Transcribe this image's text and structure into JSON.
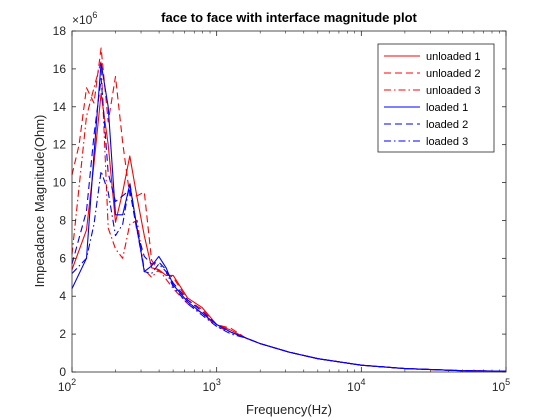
{
  "chart_data": {
    "type": "line",
    "title": "face to face with interface magnitude plot",
    "xlabel": "Frequency(Hz)",
    "ylabel": "Impeadance Magnitude(Ohm)",
    "x_scale": "log",
    "xlim": [
      100,
      100000
    ],
    "ylim": [
      0,
      18000000
    ],
    "y_exponent_label": "×10",
    "y_exponent": "6",
    "x_tick_base": "10",
    "x_ticks": [
      {
        "value": 100,
        "exp": "2"
      },
      {
        "value": 1000,
        "exp": "3"
      },
      {
        "value": 10000,
        "exp": "4"
      },
      {
        "value": 100000,
        "exp": "5"
      }
    ],
    "y_ticks": [
      {
        "value": 0,
        "label": "0"
      },
      {
        "value": 2000000,
        "label": "2"
      },
      {
        "value": 4000000,
        "label": "4"
      },
      {
        "value": 6000000,
        "label": "6"
      },
      {
        "value": 8000000,
        "label": "8"
      },
      {
        "value": 10000000,
        "label": "10"
      },
      {
        "value": 12000000,
        "label": "12"
      },
      {
        "value": 14000000,
        "label": "14"
      },
      {
        "value": 16000000,
        "label": "16"
      },
      {
        "value": 18000000,
        "label": "18"
      }
    ],
    "grid": false,
    "legend_position": "top-right",
    "series": [
      {
        "name": "unloaded 1",
        "color": "#ff0000",
        "dash": "solid",
        "points": [
          [
            100,
            5400000
          ],
          [
            126,
            7500000
          ],
          [
            142,
            11000000
          ],
          [
            159,
            14700000
          ],
          [
            178,
            12000000
          ],
          [
            200,
            7900000
          ],
          [
            224,
            9500000
          ],
          [
            251,
            11400000
          ],
          [
            282,
            9200000
          ],
          [
            316,
            7200000
          ],
          [
            355,
            5500000
          ],
          [
            398,
            5400000
          ],
          [
            447,
            5100000
          ],
          [
            501,
            5100000
          ],
          [
            631,
            3900000
          ],
          [
            794,
            3400000
          ],
          [
            1000,
            2500000
          ],
          [
            1259,
            2200000
          ],
          [
            1585,
            1800000
          ],
          [
            2000,
            1500000
          ],
          [
            3162,
            1050000
          ],
          [
            5012,
            700000
          ],
          [
            10000,
            360000
          ],
          [
            20000,
            180000
          ],
          [
            50000,
            70000
          ],
          [
            100000,
            40000
          ]
        ]
      },
      {
        "name": "unloaded 2",
        "color": "#ff0000",
        "dash": "dashed",
        "points": [
          [
            100,
            10400000
          ],
          [
            112,
            12000000
          ],
          [
            126,
            15000000
          ],
          [
            142,
            14200000
          ],
          [
            159,
            17100000
          ],
          [
            178,
            13200000
          ],
          [
            200,
            15600000
          ],
          [
            224,
            12100000
          ],
          [
            251,
            9300000
          ],
          [
            282,
            9300000
          ],
          [
            316,
            9500000
          ],
          [
            355,
            5900000
          ],
          [
            398,
            5300000
          ],
          [
            447,
            5200000
          ],
          [
            501,
            5000000
          ],
          [
            631,
            3800000
          ],
          [
            794,
            3300000
          ],
          [
            1000,
            2500000
          ],
          [
            1259,
            2300000
          ],
          [
            1585,
            1800000
          ],
          [
            2000,
            1500000
          ],
          [
            3162,
            1050000
          ],
          [
            5012,
            700000
          ],
          [
            10000,
            360000
          ],
          [
            20000,
            180000
          ],
          [
            50000,
            70000
          ],
          [
            100000,
            40000
          ]
        ]
      },
      {
        "name": "unloaded 3",
        "color": "#ff0000",
        "dash": "dashdot",
        "points": [
          [
            100,
            6200000
          ],
          [
            126,
            13500000
          ],
          [
            142,
            15000000
          ],
          [
            159,
            16400000
          ],
          [
            178,
            7600000
          ],
          [
            200,
            6500000
          ],
          [
            224,
            6000000
          ],
          [
            251,
            7800000
          ],
          [
            282,
            8000000
          ],
          [
            316,
            5400000
          ],
          [
            355,
            5000000
          ],
          [
            398,
            5400000
          ],
          [
            447,
            4900000
          ],
          [
            501,
            4400000
          ],
          [
            631,
            3600000
          ],
          [
            794,
            3100000
          ],
          [
            1000,
            2400000
          ],
          [
            1259,
            2100000
          ],
          [
            1585,
            1800000
          ],
          [
            2000,
            1500000
          ],
          [
            3162,
            1050000
          ],
          [
            5012,
            700000
          ],
          [
            10000,
            360000
          ],
          [
            20000,
            180000
          ],
          [
            50000,
            70000
          ],
          [
            100000,
            40000
          ]
        ]
      },
      {
        "name": "loaded 1",
        "color": "#0000ff",
        "dash": "solid",
        "points": [
          [
            100,
            4400000
          ],
          [
            126,
            6000000
          ],
          [
            142,
            11500000
          ],
          [
            159,
            16300000
          ],
          [
            178,
            14000000
          ],
          [
            200,
            8300000
          ],
          [
            224,
            8300000
          ],
          [
            251,
            9900000
          ],
          [
            282,
            7600000
          ],
          [
            316,
            5300000
          ],
          [
            355,
            5600000
          ],
          [
            398,
            6100000
          ],
          [
            447,
            5500000
          ],
          [
            501,
            4600000
          ],
          [
            631,
            3700000
          ],
          [
            794,
            3100000
          ],
          [
            1000,
            2500000
          ],
          [
            1259,
            2100000
          ],
          [
            1585,
            1800000
          ],
          [
            2000,
            1500000
          ],
          [
            3162,
            1050000
          ],
          [
            5012,
            700000
          ],
          [
            10000,
            360000
          ],
          [
            20000,
            180000
          ],
          [
            50000,
            70000
          ],
          [
            100000,
            40000
          ]
        ]
      },
      {
        "name": "loaded 2",
        "color": "#0000ff",
        "dash": "dashed",
        "points": [
          [
            100,
            5700000
          ],
          [
            126,
            8500000
          ],
          [
            142,
            12500000
          ],
          [
            159,
            15500000
          ],
          [
            178,
            10500000
          ],
          [
            200,
            9000000
          ],
          [
            224,
            9300000
          ],
          [
            251,
            9600000
          ],
          [
            282,
            7400000
          ],
          [
            316,
            6100000
          ],
          [
            355,
            5700000
          ],
          [
            398,
            5800000
          ],
          [
            447,
            5400000
          ],
          [
            501,
            4700000
          ],
          [
            631,
            3800000
          ],
          [
            794,
            3200000
          ],
          [
            1000,
            2500000
          ],
          [
            1259,
            2100000
          ],
          [
            1585,
            1800000
          ],
          [
            2000,
            1500000
          ],
          [
            3162,
            1050000
          ],
          [
            5012,
            700000
          ],
          [
            10000,
            360000
          ],
          [
            20000,
            180000
          ],
          [
            50000,
            70000
          ],
          [
            100000,
            40000
          ]
        ]
      },
      {
        "name": "loaded 3",
        "color": "#0000ff",
        "dash": "dashdot",
        "points": [
          [
            100,
            5200000
          ],
          [
            126,
            6000000
          ],
          [
            142,
            7800000
          ],
          [
            159,
            10600000
          ],
          [
            178,
            9500000
          ],
          [
            200,
            7200000
          ],
          [
            224,
            7800000
          ],
          [
            251,
            10000000
          ],
          [
            282,
            7500000
          ],
          [
            316,
            5300000
          ],
          [
            355,
            5200000
          ],
          [
            398,
            5700000
          ],
          [
            447,
            5300000
          ],
          [
            501,
            4500000
          ],
          [
            631,
            3600000
          ],
          [
            794,
            3000000
          ],
          [
            1000,
            2400000
          ],
          [
            1259,
            2000000
          ],
          [
            1585,
            1800000
          ],
          [
            2000,
            1500000
          ],
          [
            3162,
            1050000
          ],
          [
            5012,
            700000
          ],
          [
            10000,
            360000
          ],
          [
            20000,
            180000
          ],
          [
            50000,
            70000
          ],
          [
            100000,
            40000
          ]
        ]
      }
    ]
  }
}
